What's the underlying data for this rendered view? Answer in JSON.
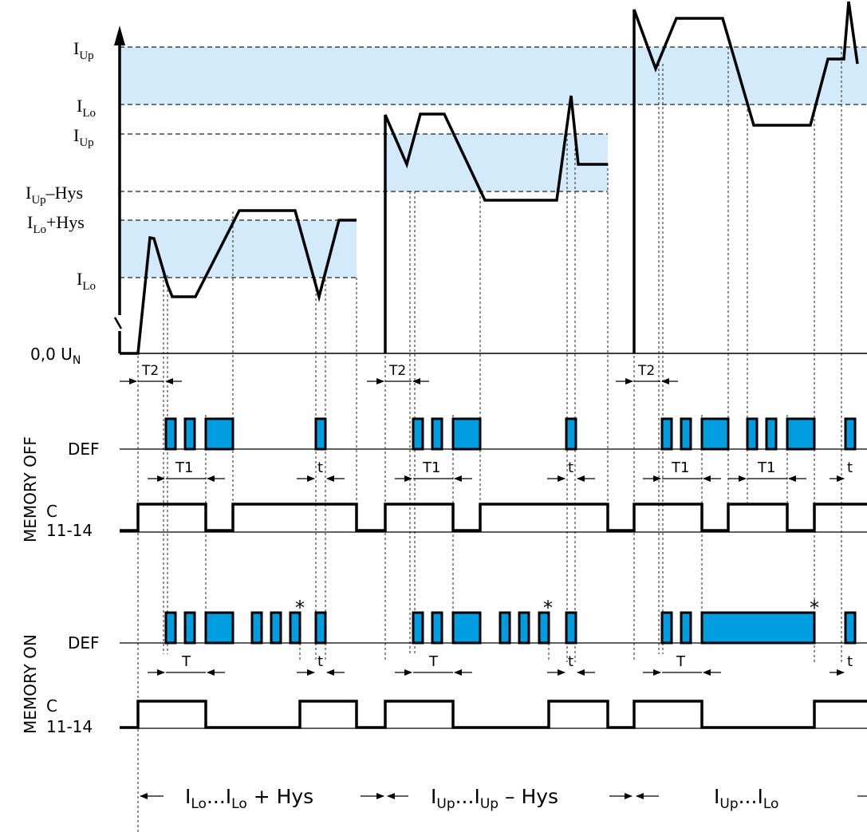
{
  "levels": {
    "seg1": {
      "upper": "I_Lo+Hys",
      "lower": "I_Lo"
    },
    "seg2": {
      "upper": "I_Up",
      "lower": "I_Up–Hys"
    },
    "seg3": {
      "upper": "I_Up",
      "lower": "I_Lo"
    }
  },
  "axis": {
    "zero_label": "0,0 U_N"
  },
  "timers": {
    "t2": "T2",
    "t1": "T1",
    "t": "t",
    "T": "T"
  },
  "rows": {
    "def_label": "DEF",
    "contact_label_c": "C",
    "contact_label_pins": "11-14",
    "memory_off": "MEMORY OFF",
    "memory_on": "MEMORY ON",
    "asterisk": "*"
  },
  "ranges": [
    {
      "a": "I",
      "as": "Lo",
      "dots": "...",
      "b": "I",
      "bs": "Lo",
      "c": " + Hys"
    },
    {
      "a": "I",
      "as": "Up",
      "dots": "...",
      "b": "I",
      "bs": "Up",
      "c": " – Hys"
    },
    {
      "a": "I",
      "as": "Up",
      "dots": "...",
      "b": "I",
      "bs": "Lo",
      "c": ""
    }
  ],
  "colors": {
    "band": "#d3eafa",
    "pulse": "#009ee0",
    "line": "#000000"
  }
}
